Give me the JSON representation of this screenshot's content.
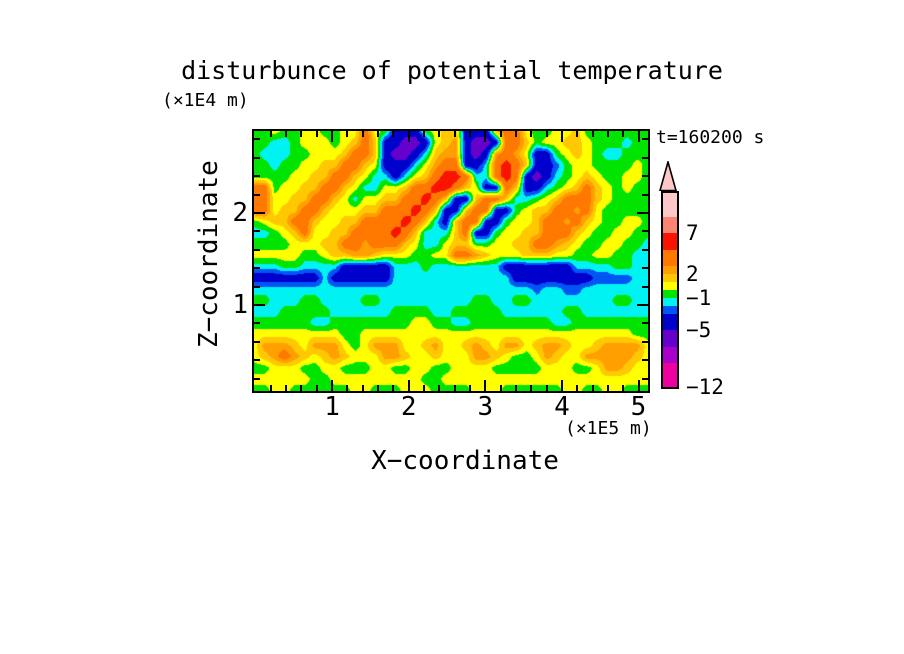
{
  "title": "disturbunce of potential temperature",
  "annotation": "t=160200 s",
  "x_axis": {
    "label": "X−coordinate",
    "unit": "(×1E5 m)",
    "tick_values": [
      1,
      2,
      3,
      4,
      5
    ],
    "tick_labels": [
      "1",
      "2",
      "3",
      "4",
      "5"
    ],
    "range": [
      0,
      5.12
    ],
    "minor_step": 0.2
  },
  "z_axis": {
    "label": "Z−coordinate",
    "unit": "(×1E4 m)",
    "tick_values": [
      1,
      2
    ],
    "tick_labels": [
      "1",
      "2"
    ],
    "range": [
      0.06,
      2.89
    ],
    "minor_step": 0.2
  },
  "chart_data": {
    "type": "heatmap",
    "title": "disturbunce of potential temperature",
    "xlabel": "X-coordinate (x1E5 m)",
    "ylabel": "Z-coordinate (x1E4 m)",
    "time_annotation": "t=160200 s",
    "legend_position": "right-colorbar",
    "levels": [
      -12,
      -9,
      -7,
      -5,
      -3,
      -2,
      -1,
      0,
      1,
      2,
      3,
      5,
      7,
      9,
      12
    ],
    "palette": [
      "#EE00A0",
      "#AA00CC",
      "#6600CC",
      "#0000CC",
      "#0055F5",
      "#00F2F2",
      "#00E400",
      "#FFFF00",
      "#FFC800",
      "#FFA000",
      "#FF7800",
      "#FA1400",
      "#FB8570",
      "#FFC8C8"
    ],
    "over_color": "#FFC8C8",
    "frame_color": "#000000",
    "colorbar_labels": [
      {
        "text": "7",
        "value": 7
      },
      {
        "text": "2",
        "value": 2
      },
      {
        "text": "−1",
        "value": -1
      },
      {
        "text": "−5",
        "value": -5
      },
      {
        "text": "−12",
        "value": -12
      }
    ],
    "grid": {
      "nx": 40,
      "nz": 24,
      "x_range": [
        0,
        5.12
      ],
      "z_range_top_to_bottom": [
        2.89,
        0.06
      ],
      "values_top_to_bottom": [
        [
          -0.5,
          -0.5,
          0.5,
          -0.5,
          -0.5,
          0.5,
          0.5,
          -0.5,
          -0.5,
          0.5,
          0.5,
          4,
          0.5,
          -0.5,
          -4,
          -4,
          -4,
          -0.5,
          0.5,
          1.5,
          1.5,
          -4,
          -4,
          -4,
          1.5,
          4,
          4,
          0.5,
          -0.5,
          -0.5,
          0.5,
          0.5,
          1.5,
          -0.5,
          -0.5,
          -0.5,
          -0.5,
          -0.5,
          -0.5,
          -0.5
        ],
        [
          -0.5,
          -0.5,
          -1.5,
          -1.5,
          -0.5,
          0.5,
          0.5,
          0.5,
          -0.5,
          0.5,
          1.5,
          4,
          1.5,
          -4,
          -4,
          -6,
          -6,
          -4,
          0.5,
          1.5,
          2.5,
          -4,
          -6,
          -6,
          -4,
          4,
          4,
          1.5,
          -0.5,
          0.5,
          0.5,
          1.5,
          1.5,
          0.5,
          -0.5,
          -0.5,
          -0.5,
          -1.5,
          -0.5,
          -0.5
        ],
        [
          -0.5,
          -1.5,
          -1.5,
          -1.5,
          -0.5,
          -0.5,
          0.5,
          0.5,
          0.5,
          1.5,
          4,
          4,
          1.5,
          -4,
          -6,
          -6,
          -4,
          -1.5,
          1.5,
          2.5,
          2.5,
          -4,
          -6,
          -4,
          2.5,
          4,
          2.5,
          0.5,
          -4,
          -4,
          -0.5,
          0.5,
          1.5,
          0.5,
          -0.5,
          -1.5,
          -1.5,
          -0.5,
          -0.5,
          -0.5
        ],
        [
          -0.5,
          -0.5,
          -1.5,
          -0.5,
          -0.5,
          0.5,
          0.5,
          1.5,
          1.5,
          4,
          4,
          1.5,
          0.5,
          -4,
          -4,
          -4,
          -1.5,
          0.5,
          2.5,
          4,
          4,
          -4,
          -4,
          -1.5,
          4,
          6,
          4,
          1.5,
          -4,
          -4,
          -2.5,
          -0.5,
          0.5,
          0.5,
          -0.5,
          -0.5,
          -0.5,
          -0.5,
          0.5,
          -0.5
        ],
        [
          -0.5,
          -0.5,
          -0.5,
          -0.5,
          0.5,
          0.5,
          1.5,
          1.5,
          4,
          4,
          1.5,
          0.5,
          -1.5,
          -1.5,
          -4,
          -1.5,
          0.5,
          1.5,
          4,
          6,
          6,
          4,
          -1.5,
          -1.5,
          4,
          6,
          4,
          -4,
          -6,
          -4,
          -1.5,
          -0.5,
          0.5,
          1.5,
          0.5,
          -0.5,
          -0.5,
          0.5,
          0.5,
          -0.5
        ],
        [
          4,
          4,
          -0.5,
          0.5,
          0.5,
          1.5,
          1.5,
          4,
          4,
          1.5,
          0.5,
          -1.5,
          -1.5,
          0.5,
          0.5,
          1.5,
          4,
          4,
          6,
          6,
          4,
          1.5,
          0.5,
          -4,
          -4,
          4,
          1.5,
          -4,
          -4,
          -1.5,
          -0.5,
          0.5,
          1.5,
          4,
          1.5,
          0.5,
          -0.5,
          0.5,
          -0.5,
          -0.5
        ],
        [
          4,
          4,
          0.5,
          0.5,
          1.5,
          1.5,
          4,
          4,
          1.5,
          0.5,
          -1.5,
          0.5,
          0.5,
          1.5,
          1.5,
          4,
          4,
          6,
          4,
          1.5,
          -4,
          -4,
          1.5,
          4,
          4,
          1.5,
          -1.5,
          -1.5,
          -0.5,
          0.5,
          1.5,
          4,
          4,
          4,
          1.5,
          0.5,
          -0.5,
          -0.5,
          -0.5,
          -0.5
        ],
        [
          4,
          4,
          0.5,
          1.5,
          1.5,
          4,
          4,
          1.5,
          0.5,
          0.5,
          0.5,
          1.5,
          1.5,
          4,
          4,
          4,
          6,
          4,
          1.5,
          -4,
          -4,
          1.5,
          4,
          4,
          -4,
          -4,
          -0.5,
          0.5,
          1.5,
          1.5,
          4,
          4,
          2.5,
          4,
          0.5,
          -0.5,
          -0.5,
          -0.5,
          -0.5,
          -0.5
        ],
        [
          -0.5,
          0.5,
          1.5,
          1.5,
          4,
          4,
          1.5,
          0.5,
          0.5,
          1.5,
          1.5,
          4,
          4,
          4,
          4,
          6,
          4,
          1.5,
          -1.5,
          -4,
          1.5,
          4,
          4,
          -4,
          -4,
          -0.5,
          0.5,
          0.5,
          1.5,
          4,
          4,
          2.5,
          4,
          1.5,
          0.5,
          -0.5,
          -0.5,
          0.5,
          0.5,
          -0.5
        ],
        [
          -1.5,
          -1.5,
          -0.5,
          0.5,
          1.5,
          4,
          0.5,
          0.5,
          1.5,
          1.5,
          4,
          4,
          4,
          4,
          6,
          4,
          1.5,
          -1.5,
          -1.5,
          -1.5,
          1.5,
          4,
          -4,
          -4,
          -0.5,
          0.5,
          0.5,
          1.5,
          1.5,
          4,
          4,
          4,
          1.5,
          0.5,
          -0.5,
          -0.5,
          0.5,
          0.5,
          -0.5,
          -0.5
        ],
        [
          -0.5,
          -0.5,
          -0.5,
          -0.5,
          0.5,
          0.5,
          0.5,
          1.5,
          1.5,
          4,
          4,
          2.5,
          4,
          4,
          4,
          1.5,
          0.5,
          -1.5,
          -1.5,
          0.5,
          1.5,
          1.5,
          -0.5,
          -0.5,
          0.5,
          0.5,
          1.5,
          1.5,
          4,
          4,
          2.5,
          1.5,
          0.5,
          -0.5,
          -0.5,
          0.5,
          0.5,
          -0.5,
          -0.5,
          -1.5
        ],
        [
          0.5,
          0.5,
          0.5,
          0.5,
          0.5,
          -0.5,
          -0.5,
          0.5,
          1.5,
          1.5,
          2.5,
          2.5,
          1.5,
          0.5,
          0.5,
          0.5,
          -0.5,
          -0.5,
          0.5,
          0.5,
          4,
          4,
          2.5,
          1.5,
          0.5,
          0.5,
          0.5,
          1.5,
          1.5,
          1.5,
          0.5,
          0.5,
          -0.5,
          -0.5,
          0.5,
          0.5,
          -0.5,
          -0.5,
          -1.5,
          -1.5
        ],
        [
          -1.5,
          -1.5,
          -1.5,
          -0.5,
          -0.5,
          -1.5,
          -1.5,
          -1.5,
          -1.5,
          -4,
          -4,
          -4,
          -4,
          -4,
          -1.5,
          -1.5,
          -1.5,
          -0.5,
          -1.5,
          -1.5,
          -1.5,
          -1.5,
          -1.5,
          -1.5,
          -1.5,
          -4,
          -4,
          -4,
          -4,
          -4,
          -4,
          -4,
          -1.5,
          -1.5,
          -1.5,
          -1.5,
          -0.5,
          -0.5,
          -1.5,
          -1.5
        ],
        [
          -4,
          -4,
          -4,
          -4,
          -4,
          -4,
          -4,
          -1.5,
          -4,
          -4,
          -4,
          -4,
          -4,
          -4,
          -1.5,
          -1.5,
          -1.5,
          -1.5,
          -1.5,
          -1.5,
          -1.5,
          -1.5,
          -1.5,
          -1.5,
          -1.5,
          -1.5,
          -4,
          -4,
          -4,
          -4,
          -4,
          -4,
          -4,
          -4,
          -2.5,
          -2.5,
          -2.5,
          -2.5,
          -1.5,
          -1.5
        ],
        [
          -1.5,
          -1.5,
          -1.5,
          -1.5,
          -1.5,
          -1.5,
          -1.5,
          -1.5,
          -1.5,
          -1.5,
          -1.5,
          -1.5,
          -1.5,
          -1.5,
          -1.5,
          -1.5,
          -1.5,
          -1.5,
          -1.5,
          -1.5,
          -1.5,
          -1.5,
          -1.5,
          -1.5,
          -1.5,
          -1.5,
          -1.5,
          -1.5,
          -2.5,
          -1.5,
          -1.5,
          -2.5,
          -2.5,
          -1.5,
          -1.5,
          -1.5,
          -1.5,
          -1.5,
          -1.5,
          -1.5
        ],
        [
          -0.5,
          -0.5,
          -1.5,
          -1.5,
          -1.5,
          -0.5,
          -0.5,
          -1.5,
          -1.5,
          -1.5,
          -1.5,
          -0.5,
          -0.5,
          -1.5,
          -1.5,
          -1.5,
          -1.5,
          -1.5,
          -1.5,
          -1.5,
          -1.5,
          -1.5,
          -0.5,
          -0.5,
          -1.5,
          -1.5,
          -0.5,
          -0.5,
          -1.5,
          -1.5,
          -1.5,
          -1.5,
          -1.5,
          -1.5,
          -1.5,
          -1.5,
          -0.5,
          -0.5,
          -1.5,
          -1.5
        ],
        [
          -1.5,
          -1.5,
          -1.5,
          -0.5,
          -0.5,
          -0.5,
          -0.5,
          -0.5,
          -1.5,
          -1.5,
          -1.5,
          -1.5,
          -1.5,
          -1.5,
          -0.5,
          -0.5,
          -0.5,
          -0.5,
          -1.5,
          -1.5,
          -0.5,
          -0.5,
          -0.5,
          -0.5,
          -0.5,
          -1.5,
          -1.5,
          -1.5,
          -1.5,
          -1.5,
          -1.5,
          -0.5,
          -0.5,
          -1.5,
          -1.5,
          -1.5,
          -1.5,
          -1.5,
          -1.5,
          -1.5
        ],
        [
          -0.5,
          -0.5,
          -0.5,
          -0.5,
          -0.5,
          -0.5,
          -1.5,
          -1.5,
          -0.5,
          -0.5,
          -0.5,
          -0.5,
          -0.5,
          -0.5,
          -0.5,
          -0.5,
          0.5,
          0.5,
          -0.5,
          -0.5,
          -1.5,
          -1.5,
          -0.5,
          -0.5,
          -0.5,
          -0.5,
          -0.5,
          -0.5,
          -0.5,
          -0.5,
          -1.5,
          -1.5,
          -0.5,
          -0.5,
          -0.5,
          -0.5,
          -0.5,
          -0.5,
          -0.5,
          -0.5
        ],
        [
          0.5,
          0.5,
          0.5,
          0.5,
          0.5,
          0.5,
          0.5,
          0.5,
          0.5,
          -0.5,
          -0.5,
          0.5,
          0.5,
          0.5,
          0.5,
          0.5,
          0.5,
          0.5,
          0.5,
          0.5,
          0.5,
          0.5,
          0.5,
          0.5,
          0.5,
          0.5,
          0.5,
          0.5,
          0.5,
          0.5,
          0.5,
          0.5,
          0.5,
          0.5,
          0.5,
          0.5,
          0.5,
          0.5,
          -0.5,
          -0.5
        ],
        [
          0.5,
          2.5,
          2.5,
          2.5,
          1.5,
          0.5,
          2.5,
          2.5,
          2.5,
          0.5,
          -0.5,
          0.5,
          2.5,
          2.5,
          2.5,
          0.5,
          0.5,
          1.5,
          2.5,
          0.5,
          0.5,
          1.5,
          2.5,
          1.5,
          0.5,
          2.5,
          2.5,
          0.5,
          1.5,
          2.5,
          2.5,
          1.5,
          0.5,
          0.5,
          1.5,
          2.5,
          2.5,
          2.5,
          2.5,
          0.5
        ],
        [
          0.5,
          1.5,
          2.5,
          4,
          2.5,
          1.5,
          0.5,
          1.5,
          2.5,
          1.5,
          0.5,
          0.5,
          0.5,
          2.5,
          2.5,
          1.5,
          0.5,
          0.5,
          1.5,
          0.5,
          0.5,
          0.5,
          2.5,
          2.5,
          1.5,
          0.5,
          -0.5,
          -0.5,
          0.5,
          2.5,
          1.5,
          0.5,
          0.5,
          2.5,
          2.5,
          2.5,
          2.5,
          2.5,
          1.5,
          0.5
        ],
        [
          -0.5,
          -0.5,
          0.5,
          0.5,
          0.5,
          -0.5,
          -0.5,
          0.5,
          0.5,
          -0.5,
          -0.5,
          -0.5,
          0.5,
          0.5,
          -0.5,
          -0.5,
          0.5,
          0.5,
          -0.5,
          -0.5,
          0.5,
          0.5,
          0.5,
          0.5,
          -0.5,
          -0.5,
          -0.5,
          -0.5,
          -0.5,
          0.5,
          0.5,
          0.5,
          -0.5,
          -0.5,
          0.5,
          2.5,
          2.5,
          1.5,
          0.5,
          0.5
        ],
        [
          0.5,
          0.5,
          0.5,
          0.5,
          0.5,
          0.5,
          -0.5,
          -0.5,
          0.5,
          0.5,
          0.5,
          0.5,
          0.5,
          0.5,
          0.5,
          0.5,
          0.5,
          -0.5,
          -0.5,
          0.5,
          0.5,
          0.5,
          0.5,
          0.5,
          0.5,
          0.5,
          0.5,
          0.5,
          0.5,
          0.5,
          0.5,
          0.5,
          0.5,
          0.5,
          0.5,
          0.5,
          0.5,
          0.5,
          0.5,
          0.5
        ],
        [
          -0.5,
          -0.5,
          0.5,
          0.5,
          -0.5,
          -0.5,
          -0.5,
          -0.5,
          -0.5,
          -0.5,
          0.5,
          0.5,
          -0.5,
          -0.5,
          -0.5,
          0.5,
          0.5,
          0.5,
          -0.5,
          -0.5,
          -0.5,
          -0.5,
          0.5,
          0.5,
          0.5,
          -0.5,
          -0.5,
          -0.5,
          -0.5,
          -0.5,
          -0.5,
          0.5,
          0.5,
          -0.5,
          -0.5,
          0.5,
          0.5,
          -0.5,
          -0.5,
          -0.5
        ]
      ]
    }
  }
}
